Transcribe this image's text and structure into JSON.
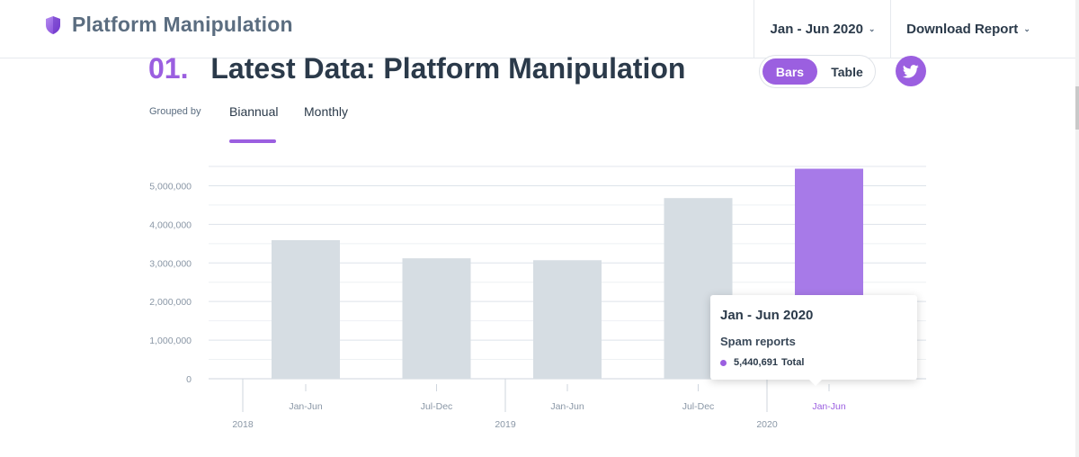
{
  "header": {
    "app_title": "Platform Manipulation",
    "period_selector": "Jan - Jun 2020",
    "download_label": "Download Report"
  },
  "section": {
    "number": "01.",
    "title": "Latest Data: Platform Manipulation",
    "view_toggle": {
      "bars": "Bars",
      "table": "Table",
      "selected": "Bars"
    }
  },
  "grouping": {
    "label": "Grouped by",
    "tabs": [
      "Biannual",
      "Monthly"
    ],
    "selected": "Biannual"
  },
  "chart_data": {
    "type": "bar",
    "categories": [
      "Jan-Jun",
      "Jul-Dec",
      "Jan-Jun",
      "Jul-Dec",
      "Jan-Jun"
    ],
    "years": [
      "2018",
      "2019",
      "2020"
    ],
    "values": [
      3590000,
      3120000,
      3070000,
      4680000,
      5440691
    ],
    "highlight_index": 4,
    "ylim": [
      0,
      5500000
    ],
    "yticks": [
      0,
      1000000,
      2000000,
      3000000,
      4000000,
      5000000
    ],
    "ytick_labels": [
      "0",
      "1,000,000",
      "2,000,000",
      "3,000,000",
      "4,000,000",
      "5,000,000"
    ],
    "colors": {
      "default": "#d6dde3",
      "highlight": "#a77ae8"
    },
    "grid": true
  },
  "tooltip": {
    "title": "Jan - Jun 2020",
    "metric": "Spam reports",
    "value": "5,440,691",
    "value_suffix": "Total"
  }
}
